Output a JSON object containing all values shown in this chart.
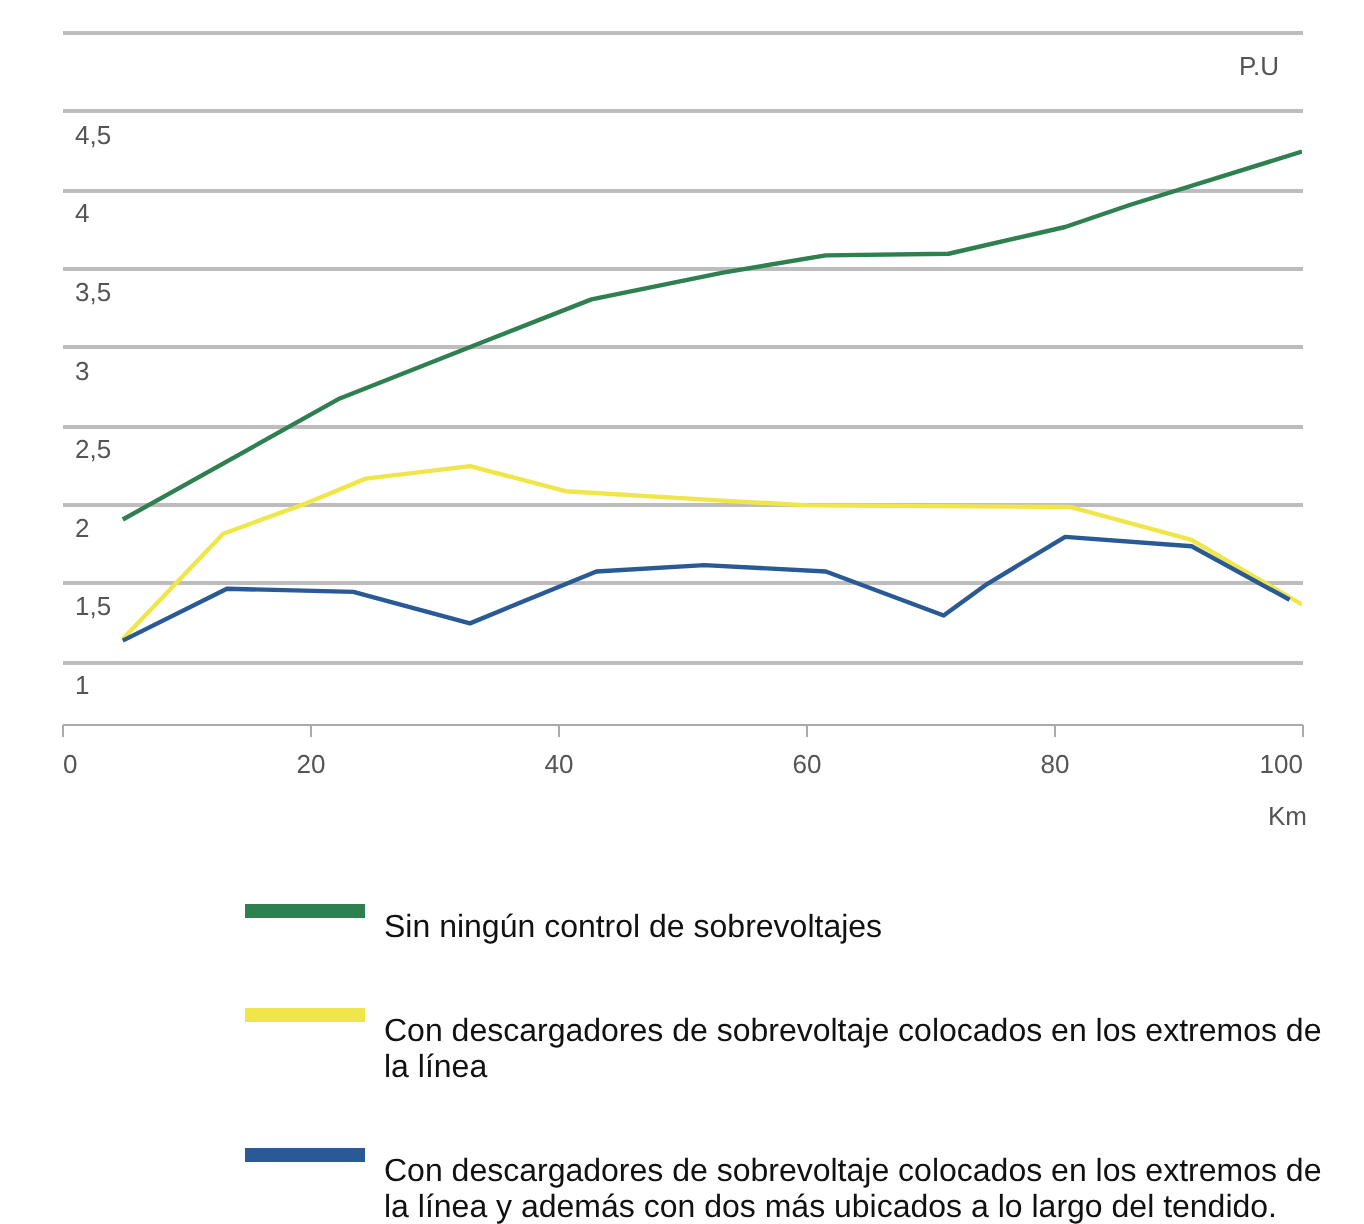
{
  "chart_data": {
    "type": "line",
    "ylabel": "P.U",
    "xlabel": "Km",
    "xlim": [
      0,
      100
    ],
    "xticks": [
      0,
      20,
      40,
      60,
      80,
      100
    ],
    "ylim": [
      0.6,
      5
    ],
    "yticks": [
      {
        "value": 1,
        "label": "1"
      },
      {
        "value": 1.5,
        "label": "1,5"
      },
      {
        "value": 2,
        "label": "2"
      },
      {
        "value": 2.5,
        "label": "2,5"
      },
      {
        "value": 3,
        "label": "3"
      },
      {
        "value": 3.5,
        "label": "3,5"
      },
      {
        "value": 4,
        "label": "4"
      },
      {
        "value": 4.5,
        "label": "4,5"
      },
      {
        "value": 5,
        "label": null
      }
    ],
    "grid": "y",
    "legend": "bottom",
    "line_style": "solid",
    "series": [
      {
        "name": "Sin ningún control de sobrevoltajes",
        "color": "#2e8050",
        "x": [
          4.9,
          22.4,
          34.3,
          42.7,
          53.3,
          61.6,
          71.5,
          80.9,
          86.1,
          100
        ],
        "values": [
          1.9,
          2.67,
          3.04,
          3.3,
          3.47,
          3.58,
          3.59,
          3.76,
          3.9,
          4.24
        ]
      },
      {
        "name": "Con descargadores de sobrevoltaje colocados en los extremos de la línea",
        "color": "#f0e64a",
        "x": [
          4.9,
          13,
          19.6,
          24.5,
          32.9,
          40.6,
          53.3,
          60.2,
          81.3,
          91.1,
          100
        ],
        "values": [
          1.14,
          1.81,
          2.0,
          2.16,
          2.24,
          2.08,
          2.02,
          1.99,
          1.98,
          1.77,
          1.36
        ]
      },
      {
        "name": "Con descargadores de sobrevoltaje colocados en los extremos de la línea y además con dos más ubicados a lo largo del tendido.",
        "color": "#2a5a96",
        "x": [
          4.9,
          13.3,
          23.5,
          32.9,
          43.1,
          51.8,
          61.6,
          71.1,
          74.6,
          80.9,
          91.1,
          99
        ],
        "values": [
          1.13,
          1.46,
          1.44,
          1.24,
          1.57,
          1.61,
          1.57,
          1.29,
          1.49,
          1.79,
          1.73,
          1.39
        ]
      }
    ]
  }
}
